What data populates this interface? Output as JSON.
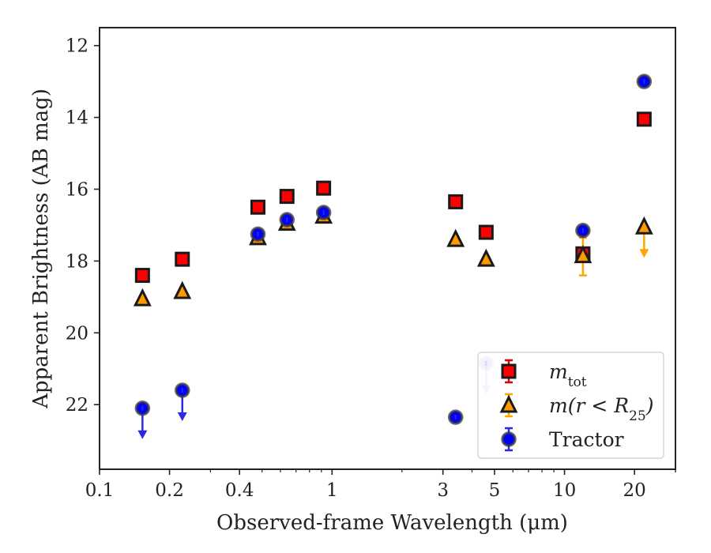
{
  "chart_data": {
    "type": "scatter",
    "title": "",
    "xlabel": "Observed-frame Wavelength (μm)",
    "ylabel": "Apparent Brightness (AB mag)",
    "xscale": "log",
    "xlim": [
      0.1,
      30
    ],
    "ylim": [
      23.8,
      11.5
    ],
    "y_inverted": true,
    "grid": false,
    "legend_position": "lower-right",
    "x_ticks": [
      {
        "value": 0.1,
        "label": "0.1"
      },
      {
        "value": 0.2,
        "label": "0.2"
      },
      {
        "value": 0.4,
        "label": "0.4"
      },
      {
        "value": 1,
        "label": "1"
      },
      {
        "value": 3,
        "label": "3"
      },
      {
        "value": 5,
        "label": "5"
      },
      {
        "value": 10,
        "label": "10"
      },
      {
        "value": 20,
        "label": "20"
      }
    ],
    "y_ticks": [
      {
        "value": 12,
        "label": "12"
      },
      {
        "value": 14,
        "label": "14"
      },
      {
        "value": 16,
        "label": "16"
      },
      {
        "value": 18,
        "label": "18"
      },
      {
        "value": 20,
        "label": "20"
      },
      {
        "value": 22,
        "label": "22"
      }
    ],
    "series": [
      {
        "key": "mtot",
        "legend_base": "m",
        "legend_sub": "tot",
        "marker": "square",
        "color": "#ff0000",
        "errcolor": "#dd0000",
        "points": [
          {
            "x": 0.153,
            "y": 18.4
          },
          {
            "x": 0.227,
            "y": 17.95
          },
          {
            "x": 0.48,
            "y": 16.5
          },
          {
            "x": 0.64,
            "y": 16.2
          },
          {
            "x": 0.92,
            "y": 15.97
          },
          {
            "x": 3.4,
            "y": 16.35
          },
          {
            "x": 4.6,
            "y": 17.2
          },
          {
            "x": 12.0,
            "y": 17.8
          },
          {
            "x": 22.0,
            "y": 14.05
          }
        ]
      },
      {
        "key": "mr25",
        "legend_base": "m(r < R",
        "legend_sub": "25",
        "legend_tail": ")",
        "marker": "triangle",
        "color": "#ff9900",
        "errcolor": "#ffa500",
        "points": [
          {
            "x": 0.153,
            "y": 19.05
          },
          {
            "x": 0.227,
            "y": 18.85
          },
          {
            "x": 0.48,
            "y": 17.35
          },
          {
            "x": 0.64,
            "y": 16.95
          },
          {
            "x": 0.92,
            "y": 16.75
          },
          {
            "x": 3.4,
            "y": 17.4
          },
          {
            "x": 4.6,
            "y": 17.95
          },
          {
            "x": 12.0,
            "y": 17.85,
            "err_low": 0.55,
            "err_high": 0.5
          },
          {
            "x": 22.0,
            "y": 17.05,
            "upper_limit": true
          }
        ]
      },
      {
        "key": "tractor",
        "legend_base": "Tractor",
        "marker": "circle",
        "color": "#0000ff",
        "errcolor": "#2a2ae0",
        "points": [
          {
            "x": 0.153,
            "y": 22.1,
            "upper_limit": true
          },
          {
            "x": 0.227,
            "y": 21.6,
            "upper_limit": true
          },
          {
            "x": 0.48,
            "y": 17.25
          },
          {
            "x": 0.64,
            "y": 16.85
          },
          {
            "x": 0.92,
            "y": 16.65
          },
          {
            "x": 3.4,
            "y": 22.35
          },
          {
            "x": 4.6,
            "y": 20.85,
            "upper_limit": true,
            "faded": true
          },
          {
            "x": 12.0,
            "y": 17.15
          },
          {
            "x": 22.0,
            "y": 13.0
          }
        ]
      }
    ]
  }
}
